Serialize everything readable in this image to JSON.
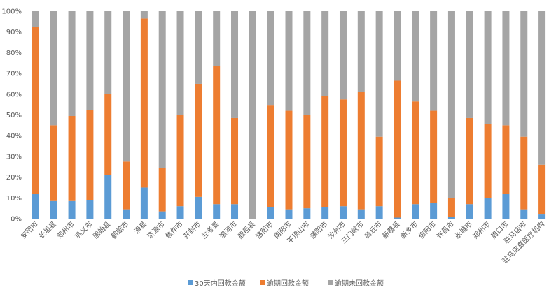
{
  "chart_data": {
    "type": "bar",
    "stacked": true,
    "percent": true,
    "categories": [
      "安阳市",
      "长垣县",
      "邓州市",
      "巩义市",
      "固始县",
      "鹤壁市",
      "滑县",
      "济源市",
      "焦作市",
      "开封市",
      "兰考县",
      "漯河市",
      "鹿邑县",
      "洛阳市",
      "南阳市",
      "平顶山市",
      "濮阳市",
      "汝州市",
      "三门峡市",
      "商丘市",
      "新蔡县",
      "新乡市",
      "信阳市",
      "许昌市",
      "永城市",
      "郑州市",
      "周口市",
      "驻马店市",
      "驻马店直医疗机构"
    ],
    "series": [
      {
        "name": "30天内回款金额",
        "color": "#5B9BD5",
        "values": [
          12,
          8.5,
          8.5,
          9,
          21,
          4.5,
          15,
          3.5,
          6,
          10.5,
          7,
          7,
          0,
          5.5,
          4.5,
          5,
          5.5,
          6,
          4.5,
          6,
          0.5,
          7,
          7.5,
          1,
          7,
          10,
          12,
          4.5,
          2
        ]
      },
      {
        "name": "逾期回款金额",
        "color": "#ED7D31",
        "values": [
          80.5,
          36.5,
          41,
          43.5,
          39,
          23,
          81.5,
          21,
          44,
          54.5,
          66.5,
          41.5,
          0,
          49,
          47.5,
          45,
          53.5,
          51.5,
          56.5,
          33.5,
          66,
          49.5,
          44.5,
          9,
          41.5,
          35.5,
          33,
          35,
          24
        ]
      },
      {
        "name": "逾期未回款金额",
        "color": "#A5A5A5",
        "values": [
          7.5,
          55,
          50.5,
          47.5,
          40,
          72.5,
          3.5,
          75.5,
          50,
          35,
          26.5,
          51.5,
          100,
          45.5,
          48,
          50,
          41,
          42.5,
          39,
          60.5,
          33.5,
          43.5,
          48,
          90,
          51.5,
          54.5,
          55,
          60.5,
          74
        ]
      }
    ],
    "yticks": [
      "0%",
      "10%",
      "20%",
      "30%",
      "40%",
      "50%",
      "60%",
      "70%",
      "80%",
      "90%",
      "100%"
    ],
    "ylim": [
      0,
      100
    ],
    "grid": false,
    "legend_position": "bottom"
  }
}
